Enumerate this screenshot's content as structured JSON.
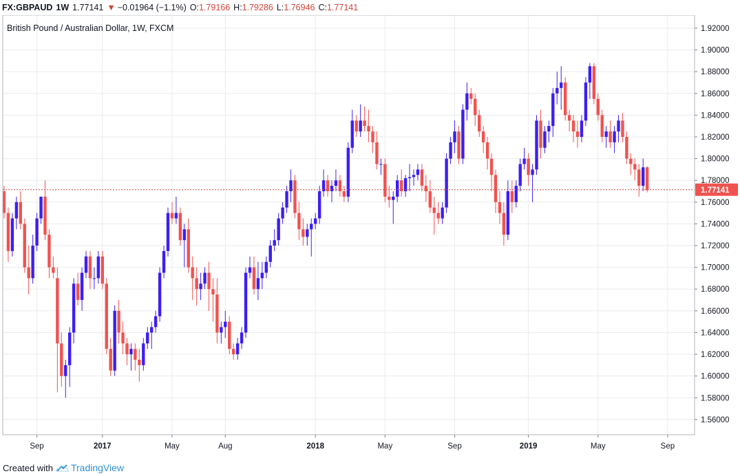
{
  "header": {
    "symbol": "FX:GBPAUD",
    "interval": "1W",
    "last": "1.77141",
    "change": "−0.01964 (−1.1%)",
    "open_label": "O:",
    "open": "1.79166",
    "high_label": "H:",
    "high": "1.79286",
    "low_label": "L:",
    "low": "1.76946",
    "close_label": "C:",
    "close": "1.77141"
  },
  "footer": {
    "created_with": "Created with",
    "brand": "TradingView"
  },
  "colors": {
    "up": "#3c1ff0",
    "down": "#ef5350",
    "grid": "#e8ebef",
    "price_line": "#d0453a"
  },
  "chart_data": {
    "type": "candlestick",
    "title": "British Pound / Australian Dollar, 1W, FXCM",
    "last_price": 1.77141,
    "last_price_label": "1.77141",
    "y_range": [
      1.546,
      1.932
    ],
    "y_ticks": [
      "1.92000",
      "1.90000",
      "1.88000",
      "1.86000",
      "1.84000",
      "1.82000",
      "1.80000",
      "1.78000",
      "1.76000",
      "1.74000",
      "1.72000",
      "1.70000",
      "1.68000",
      "1.66000",
      "1.64000",
      "1.62000",
      "1.60000",
      "1.58000",
      "1.56000"
    ],
    "x_ticks": [
      {
        "label": "Sep",
        "index": 8,
        "bold": false
      },
      {
        "label": "2017",
        "index": 24,
        "bold": true
      },
      {
        "label": "May",
        "index": 41,
        "bold": false
      },
      {
        "label": "Aug",
        "index": 54,
        "bold": false
      },
      {
        "label": "2018",
        "index": 76,
        "bold": true
      },
      {
        "label": "May",
        "index": 93,
        "bold": false
      },
      {
        "label": "Sep",
        "index": 110,
        "bold": false
      },
      {
        "label": "2019",
        "index": 128,
        "bold": true
      },
      {
        "label": "May",
        "index": 145,
        "bold": false
      },
      {
        "label": "Sep",
        "index": 162,
        "bold": false
      }
    ],
    "candles": [
      [
        1.77,
        1.775,
        1.745,
        1.75
      ],
      [
        1.75,
        1.755,
        1.705,
        1.715
      ],
      [
        1.715,
        1.75,
        1.71,
        1.745
      ],
      [
        1.745,
        1.765,
        1.735,
        1.76
      ],
      [
        1.76,
        1.77,
        1.735,
        1.74
      ],
      [
        1.74,
        1.745,
        1.695,
        1.7
      ],
      [
        1.7,
        1.72,
        1.675,
        1.69
      ],
      [
        1.69,
        1.73,
        1.685,
        1.72
      ],
      [
        1.72,
        1.75,
        1.715,
        1.745
      ],
      [
        1.745,
        1.765,
        1.74,
        1.765
      ],
      [
        1.765,
        1.78,
        1.725,
        1.73
      ],
      [
        1.73,
        1.735,
        1.69,
        1.7
      ],
      [
        1.7,
        1.71,
        1.69,
        1.695
      ],
      [
        1.69,
        1.7,
        1.585,
        1.63
      ],
      [
        1.63,
        1.64,
        1.59,
        1.6
      ],
      [
        1.6,
        1.615,
        1.58,
        1.61
      ],
      [
        1.61,
        1.645,
        1.59,
        1.64
      ],
      [
        1.64,
        1.69,
        1.63,
        1.685
      ],
      [
        1.685,
        1.695,
        1.665,
        1.67
      ],
      [
        1.67,
        1.7,
        1.66,
        1.695
      ],
      [
        1.695,
        1.715,
        1.69,
        1.71
      ],
      [
        1.71,
        1.715,
        1.68,
        1.69
      ],
      [
        1.69,
        1.7,
        1.68,
        1.69
      ],
      [
        1.69,
        1.715,
        1.685,
        1.71
      ],
      [
        1.71,
        1.715,
        1.68,
        1.685
      ],
      [
        1.685,
        1.69,
        1.62,
        1.625
      ],
      [
        1.625,
        1.635,
        1.6,
        1.605
      ],
      [
        1.605,
        1.665,
        1.6,
        1.66
      ],
      [
        1.66,
        1.67,
        1.63,
        1.64
      ],
      [
        1.64,
        1.65,
        1.62,
        1.63
      ],
      [
        1.63,
        1.635,
        1.61,
        1.62
      ],
      [
        1.62,
        1.63,
        1.605,
        1.625
      ],
      [
        1.625,
        1.63,
        1.605,
        1.615
      ],
      [
        1.615,
        1.625,
        1.595,
        1.61
      ],
      [
        1.61,
        1.635,
        1.605,
        1.63
      ],
      [
        1.63,
        1.645,
        1.625,
        1.64
      ],
      [
        1.64,
        1.65,
        1.625,
        1.645
      ],
      [
        1.645,
        1.66,
        1.64,
        1.655
      ],
      [
        1.655,
        1.7,
        1.65,
        1.695
      ],
      [
        1.695,
        1.72,
        1.69,
        1.715
      ],
      [
        1.715,
        1.755,
        1.71,
        1.75
      ],
      [
        1.75,
        1.76,
        1.74,
        1.745
      ],
      [
        1.745,
        1.765,
        1.74,
        1.75
      ],
      [
        1.75,
        1.755,
        1.72,
        1.725
      ],
      [
        1.725,
        1.74,
        1.7,
        1.735
      ],
      [
        1.735,
        1.745,
        1.695,
        1.7
      ],
      [
        1.7,
        1.71,
        1.67,
        1.69
      ],
      [
        1.69,
        1.7,
        1.665,
        1.68
      ],
      [
        1.68,
        1.695,
        1.67,
        1.685
      ],
      [
        1.685,
        1.7,
        1.68,
        1.695
      ],
      [
        1.695,
        1.705,
        1.66,
        1.68
      ],
      [
        1.68,
        1.69,
        1.65,
        1.675
      ],
      [
        1.675,
        1.69,
        1.63,
        1.64
      ],
      [
        1.64,
        1.65,
        1.63,
        1.645
      ],
      [
        1.645,
        1.66,
        1.635,
        1.65
      ],
      [
        1.65,
        1.655,
        1.62,
        1.625
      ],
      [
        1.625,
        1.63,
        1.615,
        1.62
      ],
      [
        1.62,
        1.635,
        1.615,
        1.63
      ],
      [
        1.63,
        1.645,
        1.625,
        1.64
      ],
      [
        1.64,
        1.7,
        1.635,
        1.695
      ],
      [
        1.695,
        1.71,
        1.69,
        1.7
      ],
      [
        1.7,
        1.71,
        1.675,
        1.68
      ],
      [
        1.68,
        1.705,
        1.67,
        1.69
      ],
      [
        1.69,
        1.705,
        1.68,
        1.695
      ],
      [
        1.695,
        1.71,
        1.69,
        1.705
      ],
      [
        1.705,
        1.725,
        1.7,
        1.72
      ],
      [
        1.72,
        1.735,
        1.715,
        1.725
      ],
      [
        1.725,
        1.75,
        1.72,
        1.745
      ],
      [
        1.745,
        1.76,
        1.74,
        1.755
      ],
      [
        1.755,
        1.775,
        1.75,
        1.77
      ],
      [
        1.77,
        1.79,
        1.76,
        1.78
      ],
      [
        1.78,
        1.785,
        1.745,
        1.75
      ],
      [
        1.75,
        1.76,
        1.725,
        1.735
      ],
      [
        1.735,
        1.745,
        1.72,
        1.728
      ],
      [
        1.728,
        1.74,
        1.72,
        1.735
      ],
      [
        1.735,
        1.745,
        1.71,
        1.74
      ],
      [
        1.74,
        1.75,
        1.735,
        1.745
      ],
      [
        1.745,
        1.775,
        1.74,
        1.77
      ],
      [
        1.77,
        1.79,
        1.765,
        1.78
      ],
      [
        1.78,
        1.785,
        1.765,
        1.77
      ],
      [
        1.77,
        1.78,
        1.76,
        1.775
      ],
      [
        1.775,
        1.79,
        1.77,
        1.78
      ],
      [
        1.78,
        1.785,
        1.765,
        1.77
      ],
      [
        1.77,
        1.775,
        1.76,
        1.765
      ],
      [
        1.765,
        1.815,
        1.76,
        1.81
      ],
      [
        1.81,
        1.845,
        1.805,
        1.835
      ],
      [
        1.835,
        1.84,
        1.82,
        1.825
      ],
      [
        1.825,
        1.85,
        1.82,
        1.835
      ],
      [
        1.835,
        1.848,
        1.825,
        1.83
      ],
      [
        1.83,
        1.845,
        1.815,
        1.825
      ],
      [
        1.825,
        1.83,
        1.805,
        1.815
      ],
      [
        1.815,
        1.825,
        1.79,
        1.795
      ],
      [
        1.795,
        1.8,
        1.785,
        1.795
      ],
      [
        1.795,
        1.8,
        1.76,
        1.765
      ],
      [
        1.765,
        1.775,
        1.755,
        1.762
      ],
      [
        1.762,
        1.77,
        1.74,
        1.765
      ],
      [
        1.765,
        1.785,
        1.76,
        1.78
      ],
      [
        1.78,
        1.79,
        1.765,
        1.77
      ],
      [
        1.77,
        1.785,
        1.765,
        1.782
      ],
      [
        1.782,
        1.795,
        1.77,
        1.783
      ],
      [
        1.783,
        1.79,
        1.775,
        1.785
      ],
      [
        1.785,
        1.795,
        1.78,
        1.79
      ],
      [
        1.79,
        1.795,
        1.77,
        1.775
      ],
      [
        1.775,
        1.785,
        1.76,
        1.77
      ],
      [
        1.77,
        1.78,
        1.75,
        1.755
      ],
      [
        1.755,
        1.765,
        1.73,
        1.75
      ],
      [
        1.75,
        1.76,
        1.74,
        1.745
      ],
      [
        1.745,
        1.76,
        1.74,
        1.755
      ],
      [
        1.755,
        1.805,
        1.75,
        1.8
      ],
      [
        1.8,
        1.82,
        1.795,
        1.815
      ],
      [
        1.815,
        1.835,
        1.805,
        1.825
      ],
      [
        1.825,
        1.83,
        1.795,
        1.8
      ],
      [
        1.8,
        1.85,
        1.795,
        1.845
      ],
      [
        1.845,
        1.87,
        1.835,
        1.86
      ],
      [
        1.86,
        1.865,
        1.85,
        1.855
      ],
      [
        1.855,
        1.86,
        1.83,
        1.84
      ],
      [
        1.84,
        1.845,
        1.82,
        1.825
      ],
      [
        1.825,
        1.83,
        1.805,
        1.815
      ],
      [
        1.815,
        1.82,
        1.79,
        1.8
      ],
      [
        1.8,
        1.805,
        1.77,
        1.785
      ],
      [
        1.785,
        1.79,
        1.75,
        1.76
      ],
      [
        1.76,
        1.77,
        1.74,
        1.75
      ],
      [
        1.75,
        1.76,
        1.72,
        1.73
      ],
      [
        1.73,
        1.78,
        1.725,
        1.77
      ],
      [
        1.77,
        1.78,
        1.75,
        1.76
      ],
      [
        1.76,
        1.78,
        1.755,
        1.775
      ],
      [
        1.775,
        1.8,
        1.77,
        1.795
      ],
      [
        1.795,
        1.81,
        1.79,
        1.8
      ],
      [
        1.8,
        1.805,
        1.775,
        1.785
      ],
      [
        1.785,
        1.795,
        1.76,
        1.79
      ],
      [
        1.79,
        1.84,
        1.785,
        1.835
      ],
      [
        1.835,
        1.845,
        1.8,
        1.81
      ],
      [
        1.81,
        1.83,
        1.805,
        1.825
      ],
      [
        1.825,
        1.835,
        1.815,
        1.83
      ],
      [
        1.83,
        1.865,
        1.82,
        1.86
      ],
      [
        1.86,
        1.88,
        1.85,
        1.865
      ],
      [
        1.865,
        1.885,
        1.845,
        1.87
      ],
      [
        1.87,
        1.875,
        1.835,
        1.84
      ],
      [
        1.84,
        1.845,
        1.825,
        1.835
      ],
      [
        1.835,
        1.84,
        1.815,
        1.825
      ],
      [
        1.825,
        1.835,
        1.81,
        1.82
      ],
      [
        1.82,
        1.84,
        1.815,
        1.835
      ],
      [
        1.835,
        1.875,
        1.83,
        1.87
      ],
      [
        1.87,
        1.888,
        1.855,
        1.885
      ],
      [
        1.885,
        1.888,
        1.85,
        1.855
      ],
      [
        1.855,
        1.86,
        1.835,
        1.84
      ],
      [
        1.84,
        1.845,
        1.815,
        1.82
      ],
      [
        1.82,
        1.83,
        1.81,
        1.825
      ],
      [
        1.825,
        1.835,
        1.81,
        1.815
      ],
      [
        1.815,
        1.83,
        1.805,
        1.825
      ],
      [
        1.825,
        1.84,
        1.815,
        1.835
      ],
      [
        1.835,
        1.842,
        1.815,
        1.82
      ],
      [
        1.82,
        1.825,
        1.795,
        1.8
      ],
      [
        1.8,
        1.805,
        1.785,
        1.795
      ],
      [
        1.795,
        1.8,
        1.78,
        1.79
      ],
      [
        1.79,
        1.795,
        1.765,
        1.775
      ],
      [
        1.775,
        1.8,
        1.77,
        1.792
      ],
      [
        1.792,
        1.793,
        1.769,
        1.771
      ]
    ]
  }
}
